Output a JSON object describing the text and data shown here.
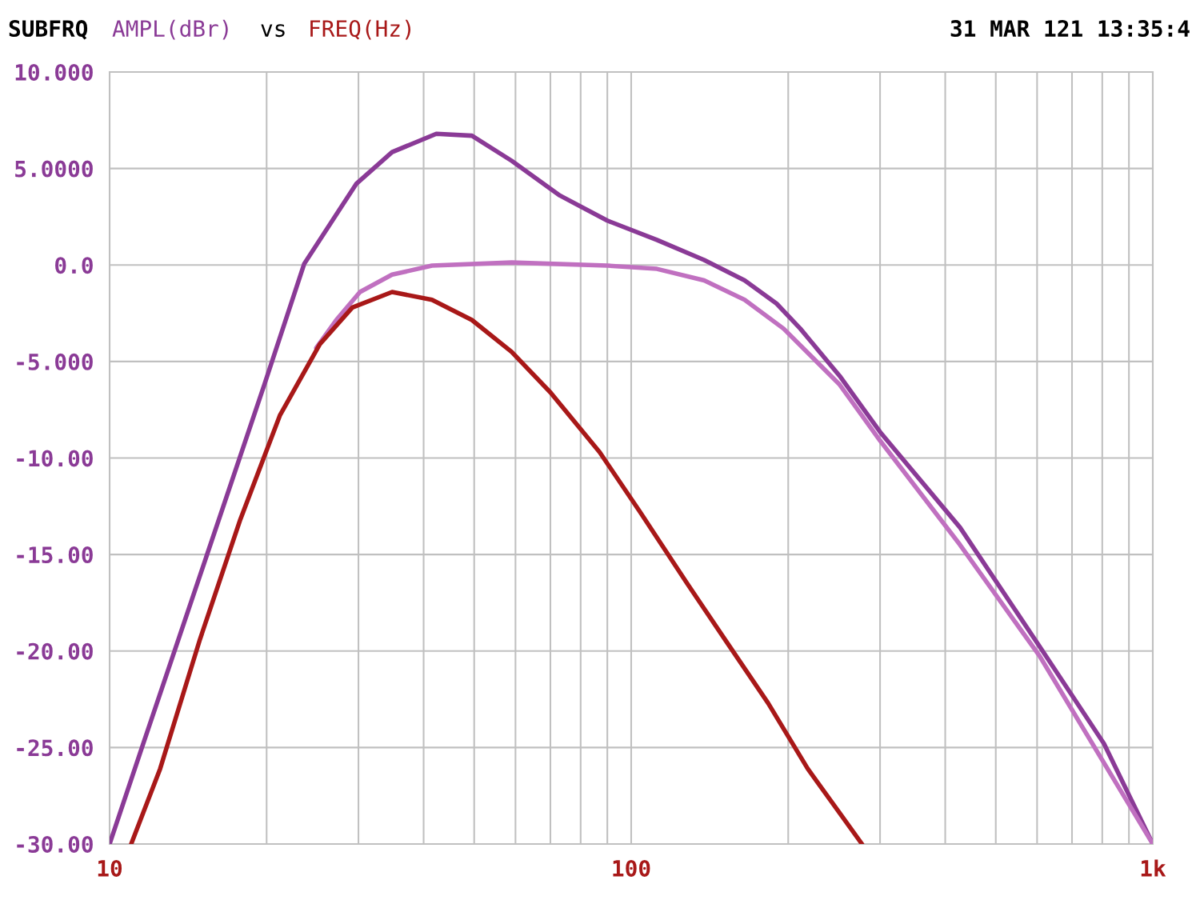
{
  "chart_data": {
    "type": "line",
    "title": "SUBFRQ",
    "xlabel": "FREQ(Hz)",
    "ylabel": "AMPL(dBr)",
    "annotations": [
      "vs",
      "31 MAR 121 13:35:4"
    ],
    "log": "x",
    "grid": true,
    "legend": false,
    "marker": "none",
    "line_style": "solid",
    "xlim": [
      10,
      1000
    ],
    "ylim": [
      -30,
      10
    ],
    "xticks": [
      10,
      {
        "value": 20,
        "label": null
      },
      {
        "value": 30,
        "label": null
      },
      {
        "value": 40,
        "label": null
      },
      {
        "value": 50,
        "label": null
      },
      {
        "value": 60,
        "label": null
      },
      {
        "value": 70,
        "label": null
      },
      {
        "value": 80,
        "label": null
      },
      {
        "value": 90,
        "label": null
      },
      100,
      {
        "value": 200,
        "label": null
      },
      {
        "value": 300,
        "label": null
      },
      {
        "value": 400,
        "label": null
      },
      {
        "value": 500,
        "label": null
      },
      {
        "value": 600,
        "label": null
      },
      {
        "value": 700,
        "label": null
      },
      {
        "value": 800,
        "label": null
      },
      {
        "value": 900,
        "label": null
      },
      {
        "value": 1000,
        "label": "1k"
      }
    ],
    "yticks": [
      {
        "value": 10,
        "label": "10.000"
      },
      {
        "value": 5,
        "label": "5.0000"
      },
      {
        "value": 0,
        "label": "0.0"
      },
      {
        "value": -5,
        "label": "-5.000"
      },
      {
        "value": -10,
        "label": "-10.00"
      },
      {
        "value": -15,
        "label": "-15.00"
      },
      {
        "value": -20,
        "label": "-20.00"
      },
      {
        "value": -25,
        "label": "-25.00"
      },
      {
        "value": -30,
        "label": "-30.00"
      }
    ],
    "series": [
      {
        "color": "#8a3a96",
        "x": [
          10,
          11.6,
          14.9,
          19.8,
          23.6,
          29.7,
          34.8,
          42.3,
          49.5,
          59,
          73,
          90,
          112,
          138,
          165,
          190,
          211,
          251,
          300,
          427,
          608,
          806,
          1000
        ],
        "values": [
          -30,
          -24.8,
          -16.1,
          -6.2,
          0.05,
          4.2,
          5.85,
          6.8,
          6.7,
          5.4,
          3.6,
          2.3,
          1.3,
          0.26,
          -0.8,
          -2.0,
          -3.3,
          -5.75,
          -8.65,
          -13.6,
          -19.8,
          -24.8,
          -30
        ]
      },
      {
        "color": "#c070c0",
        "x": [
          24.9,
          27.2,
          30.2,
          34.8,
          41.5,
          59,
          90,
          112,
          138,
          165,
          196,
          251,
          300,
          427,
          608,
          1000
        ],
        "values": [
          -4.3,
          -2.85,
          -1.4,
          -0.5,
          -0.03,
          0.13,
          -0.03,
          -0.2,
          -0.8,
          -1.8,
          -3.3,
          -6.2,
          -9.1,
          -14.5,
          -20.3,
          -30
        ]
      },
      {
        "color": "#a81818",
        "x": [
          11.0,
          12.5,
          14.9,
          17.8,
          21.2,
          25.3,
          29.2,
          34.8,
          41.5,
          49.5,
          59,
          70,
          87,
          104,
          128,
          153,
          183,
          218,
          277
        ],
        "values": [
          -30,
          -26.1,
          -19.4,
          -13.2,
          -7.8,
          -4.1,
          -2.2,
          -1.4,
          -1.8,
          -2.85,
          -4.5,
          -6.6,
          -9.7,
          -12.8,
          -16.5,
          -19.6,
          -22.7,
          -26.1,
          -30
        ]
      }
    ]
  }
}
